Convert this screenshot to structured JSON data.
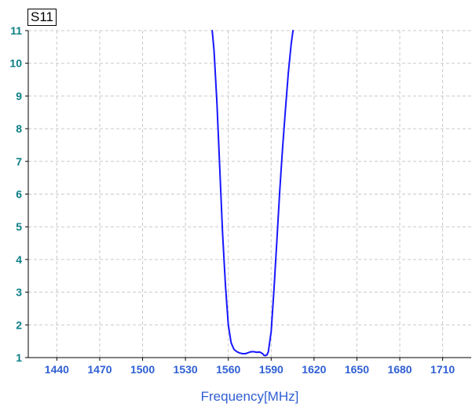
{
  "colors": {
    "series": "#1717ff",
    "xTick": "#2f5fd3",
    "yTick": "#0b7f86",
    "grid": "#c9c9c9",
    "axis": "#000000",
    "background": "#ffffff"
  },
  "chart_data": {
    "type": "line",
    "title": "",
    "xlabel": "Frequency[MHz]",
    "ylabel": "",
    "xlim": [
      1420,
      1730
    ],
    "ylim": [
      1,
      11
    ],
    "grid": true,
    "legend_placement": "top-left",
    "x_ticks": [
      1440,
      1470,
      1500,
      1530,
      1560,
      1590,
      1620,
      1650,
      1680,
      1710
    ],
    "y_ticks": [
      1,
      2,
      3,
      4,
      5,
      6,
      7,
      8,
      9,
      10,
      11
    ],
    "series": [
      {
        "name": "S11",
        "x": [
          1548.7,
          1550,
          1552,
          1554,
          1556,
          1558,
          1560,
          1562,
          1564,
          1566,
          1568,
          1570,
          1572,
          1574,
          1576,
          1578,
          1580,
          1582,
          1584,
          1585,
          1586,
          1587,
          1588,
          1590,
          1592,
          1594,
          1596,
          1598,
          1600,
          1602,
          1604,
          1605.3
        ],
        "y": [
          11.0,
          10.4,
          8.8,
          6.8,
          4.8,
          3.2,
          2.0,
          1.45,
          1.25,
          1.18,
          1.14,
          1.12,
          1.12,
          1.15,
          1.18,
          1.18,
          1.16,
          1.17,
          1.12,
          1.07,
          1.06,
          1.08,
          1.18,
          1.8,
          3.1,
          4.6,
          6.1,
          7.4,
          8.6,
          9.7,
          10.6,
          11.0
        ]
      }
    ]
  }
}
